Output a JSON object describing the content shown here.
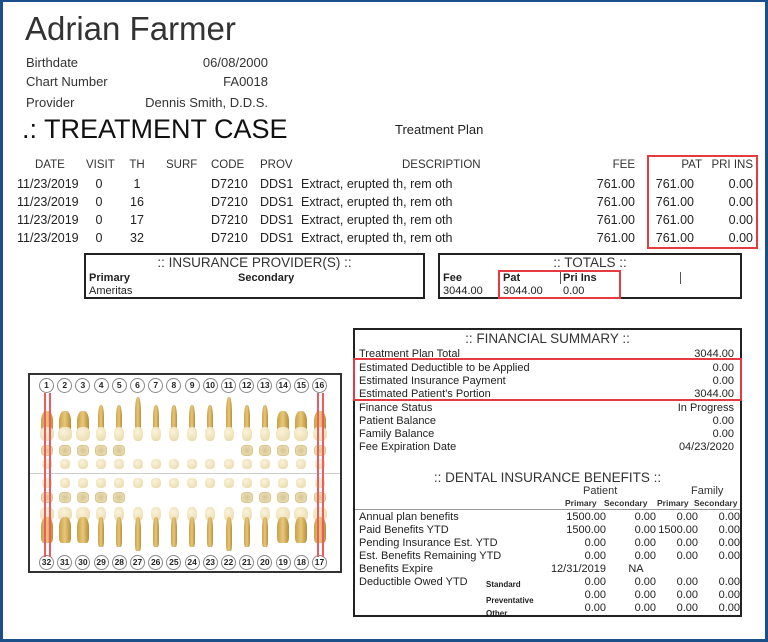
{
  "patient": {
    "name": "Adrian Farmer",
    "fields": [
      {
        "label": "Birthdate",
        "value": "06/08/2000"
      },
      {
        "label": "Chart Number",
        "value": "FA0018"
      },
      {
        "label": "Provider",
        "value": "Dennis Smith, D.D.S."
      }
    ]
  },
  "section_title": ".: TREATMENT CASE",
  "plan_label": "Treatment Plan",
  "procedures": {
    "headers": {
      "date": "DATE",
      "visit": "VISIT",
      "th": "TH",
      "surf": "SURF",
      "code": "CODE",
      "prov": "PROV",
      "desc": "DESCRIPTION",
      "fee": "FEE",
      "pat": "PAT",
      "pri": "PRI INS"
    },
    "rows": [
      {
        "date": "11/23/2019",
        "visit": "0",
        "th": "1",
        "surf": "",
        "code": "D7210",
        "prov": "DDS1",
        "desc": "Extract, erupted th, rem oth",
        "fee": "761.00",
        "pat": "761.00",
        "pri": "0.00"
      },
      {
        "date": "11/23/2019",
        "visit": "0",
        "th": "16",
        "surf": "",
        "code": "D7210",
        "prov": "DDS1",
        "desc": "Extract, erupted th, rem oth",
        "fee": "761.00",
        "pat": "761.00",
        "pri": "0.00"
      },
      {
        "date": "11/23/2019",
        "visit": "0",
        "th": "17",
        "surf": "",
        "code": "D7210",
        "prov": "DDS1",
        "desc": "Extract, erupted th, rem oth",
        "fee": "761.00",
        "pat": "761.00",
        "pri": "0.00"
      },
      {
        "date": "11/23/2019",
        "visit": "0",
        "th": "32",
        "surf": "",
        "code": "D7210",
        "prov": "DDS1",
        "desc": "Extract, erupted th, rem oth",
        "fee": "761.00",
        "pat": "761.00",
        "pri": "0.00"
      }
    ]
  },
  "insurance": {
    "title": ":: INSURANCE PROVIDER(S) ::",
    "primary_label": "Primary",
    "secondary_label": "Secondary",
    "primary_value": "Ameritas",
    "secondary_value": ""
  },
  "totals": {
    "title": ":: TOTALS ::",
    "fee_label": "Fee",
    "fee_value": "3044.00",
    "pat_label": "Pat",
    "pat_value": "3044.00",
    "pri_label": "Pri Ins",
    "pri_value": "0.00"
  },
  "financial_summary": {
    "title": ":: FINANCIAL SUMMARY ::",
    "rows": [
      {
        "label": "Treatment Plan Total",
        "value": "3044.00"
      },
      {
        "label": "Estimated Deductible to be Applied",
        "value": "0.00"
      },
      {
        "label": "Estimated Insurance Payment",
        "value": "0.00"
      },
      {
        "label": "Estimated Patient's Portion",
        "value": "3044.00"
      },
      {
        "label": "Finance Status",
        "value": "In Progress"
      },
      {
        "label": "Patient Balance",
        "value": "0.00"
      },
      {
        "label": "Family Balance",
        "value": "0.00"
      },
      {
        "label": "Fee Expiration Date",
        "value": "04/23/2020"
      }
    ]
  },
  "benefits": {
    "title": ":: DENTAL INSURANCE BENEFITS ::",
    "group_patient": "Patient",
    "group_family": "Family",
    "col_primary": "Primary",
    "col_secondary": "Secondary",
    "rows": [
      {
        "label": "Annual plan benefits",
        "sub": "",
        "v": [
          "1500.00",
          "0.00",
          "0.00",
          "0.00"
        ]
      },
      {
        "label": "Paid Benefits YTD",
        "sub": "",
        "v": [
          "1500.00",
          "0.00",
          "1500.00",
          "0.00"
        ]
      },
      {
        "label": "Pending Insurance Est. YTD",
        "sub": "",
        "v": [
          "0.00",
          "0.00",
          "0.00",
          "0.00"
        ]
      },
      {
        "label": "Est. Benefits Remaining YTD",
        "sub": "",
        "v": [
          "0.00",
          "0.00",
          "0.00",
          "0.00"
        ]
      },
      {
        "label": "Benefits Expire",
        "sub": "",
        "v": [
          "12/31/2019",
          "NA",
          "",
          ""
        ]
      },
      {
        "label": "Deductible Owed YTD",
        "sub": "Standard",
        "v": [
          "0.00",
          "0.00",
          "0.00",
          "0.00"
        ]
      },
      {
        "label": "",
        "sub": "Preventative",
        "v": [
          "0.00",
          "0.00",
          "0.00",
          "0.00"
        ]
      },
      {
        "label": "",
        "sub": "Other",
        "v": [
          "0.00",
          "0.00",
          "0.00",
          "0.00"
        ]
      }
    ]
  },
  "tooth_chart": {
    "upper": [
      "1",
      "2",
      "3",
      "4",
      "5",
      "6",
      "7",
      "8",
      "9",
      "10",
      "11",
      "12",
      "13",
      "14",
      "15",
      "16"
    ],
    "lower": [
      "32",
      "31",
      "30",
      "29",
      "28",
      "27",
      "26",
      "25",
      "24",
      "23",
      "22",
      "21",
      "20",
      "19",
      "18",
      "17"
    ],
    "marked": [
      "1",
      "16",
      "17",
      "32"
    ]
  },
  "colors": {
    "highlight": "#e53a40",
    "frame": "#1b4f8a"
  }
}
